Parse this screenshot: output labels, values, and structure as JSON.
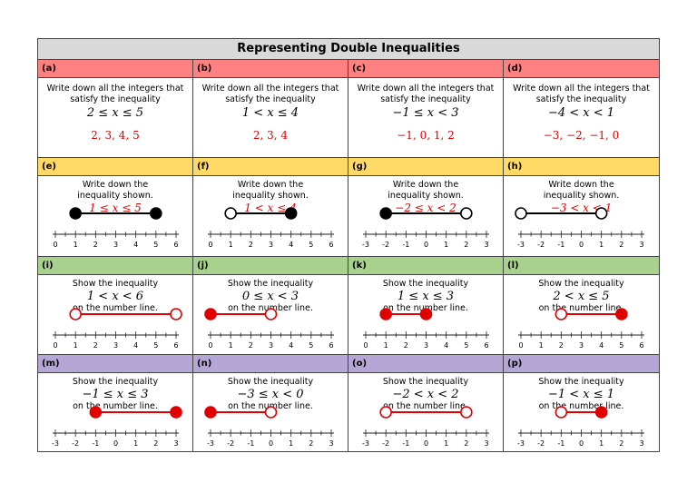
{
  "title": "Representing Double Inequalities",
  "colors": {
    "red_header": "#ff8080",
    "yellow_header": "#ffd966",
    "green_header": "#a9d18e",
    "purple_header": "#b4a7d6",
    "answer_red": "#e00000"
  },
  "rows": [
    {
      "color": "red",
      "prompt": "Write down all the integers that satisfy the inequality",
      "cells": [
        {
          "label": "(a)",
          "inequality": "2 ≤ x ≤ 5",
          "answer": "2, 3, 4, 5"
        },
        {
          "label": "(b)",
          "inequality": "1 < x ≤ 4",
          "answer": "2, 3, 4"
        },
        {
          "label": "(c)",
          "inequality": "−1 ≤ x < 3",
          "answer": "−1, 0, 1, 2"
        },
        {
          "label": "(d)",
          "inequality": "−4 < x < 1",
          "answer": "−3, −2, −1, 0"
        }
      ]
    },
    {
      "color": "yellow",
      "prompt": "Write down the inequality shown.",
      "cells": [
        {
          "label": "(e)",
          "inequality": "1 ≤ x ≤ 5",
          "ticks": [
            "0",
            "1",
            "2",
            "3",
            "4",
            "5",
            "6"
          ],
          "line": {
            "left": 1,
            "left_closed": true,
            "right": 5,
            "right_closed": true,
            "color": "black"
          }
        },
        {
          "label": "(f)",
          "inequality": "1 < x ≤ 4",
          "ticks": [
            "0",
            "1",
            "2",
            "3",
            "4",
            "5",
            "6"
          ],
          "line": {
            "left": 1,
            "left_closed": false,
            "right": 4,
            "right_closed": true,
            "color": "black"
          }
        },
        {
          "label": "(g)",
          "inequality": "−2 ≤ x < 2",
          "ticks": [
            "-3",
            "-2",
            "-1",
            "0",
            "1",
            "2",
            "3"
          ],
          "line": {
            "left": -2,
            "left_closed": true,
            "right": 2,
            "right_closed": false,
            "color": "black"
          }
        },
        {
          "label": "(h)",
          "inequality": "−3 < x < 1",
          "ticks": [
            "-3",
            "-2",
            "-1",
            "0",
            "1",
            "2",
            "3"
          ],
          "line": {
            "left": -3,
            "left_closed": false,
            "right": 1,
            "right_closed": false,
            "color": "black"
          }
        }
      ]
    },
    {
      "color": "green",
      "prompt": "Show the inequality",
      "suffix": "on the number line.",
      "cells": [
        {
          "label": "(i)",
          "inequality": "1 < x < 6",
          "ticks": [
            "0",
            "1",
            "2",
            "3",
            "4",
            "5",
            "6"
          ],
          "line": {
            "left": 1,
            "left_closed": false,
            "right": 6,
            "right_closed": false,
            "color": "red"
          }
        },
        {
          "label": "(j)",
          "inequality": "0 ≤ x < 3",
          "ticks": [
            "0",
            "1",
            "2",
            "3",
            "4",
            "5",
            "6"
          ],
          "line": {
            "left": 0,
            "left_closed": true,
            "right": 3,
            "right_closed": false,
            "color": "red"
          }
        },
        {
          "label": "(k)",
          "inequality": "1 ≤ x ≤ 3",
          "ticks": [
            "0",
            "1",
            "2",
            "3",
            "4",
            "5",
            "6"
          ],
          "line": {
            "left": 1,
            "left_closed": true,
            "right": 3,
            "right_closed": true,
            "color": "red"
          }
        },
        {
          "label": "(l)",
          "inequality": "2 < x ≤ 5",
          "ticks": [
            "0",
            "1",
            "2",
            "3",
            "4",
            "5",
            "6"
          ],
          "line": {
            "left": 2,
            "left_closed": false,
            "right": 5,
            "right_closed": true,
            "color": "red"
          }
        }
      ]
    },
    {
      "color": "purple",
      "prompt": "Show the inequality",
      "suffix": "on the number line.",
      "cells": [
        {
          "label": "(m)",
          "inequality": "−1 ≤ x ≤ 3",
          "ticks": [
            "-3",
            "-2",
            "-1",
            "0",
            "1",
            "2",
            "3"
          ],
          "line": {
            "left": -1,
            "left_closed": true,
            "right": 3,
            "right_closed": true,
            "color": "red"
          }
        },
        {
          "label": "(n)",
          "inequality": "−3 ≤ x < 0",
          "ticks": [
            "-3",
            "-2",
            "-1",
            "0",
            "1",
            "2",
            "3"
          ],
          "line": {
            "left": -3,
            "left_closed": true,
            "right": 0,
            "right_closed": false,
            "color": "red"
          }
        },
        {
          "label": "(o)",
          "inequality": "−2 < x < 2",
          "ticks": [
            "-3",
            "-2",
            "-1",
            "0",
            "1",
            "2",
            "3"
          ],
          "line": {
            "left": -2,
            "left_closed": false,
            "right": 2,
            "right_closed": false,
            "color": "red"
          }
        },
        {
          "label": "(p)",
          "inequality": "−1 < x ≤ 1",
          "ticks": [
            "-3",
            "-2",
            "-1",
            "0",
            "1",
            "2",
            "3"
          ],
          "line": {
            "left": -1,
            "left_closed": false,
            "right": 1,
            "right_closed": true,
            "color": "red"
          }
        }
      ]
    }
  ]
}
